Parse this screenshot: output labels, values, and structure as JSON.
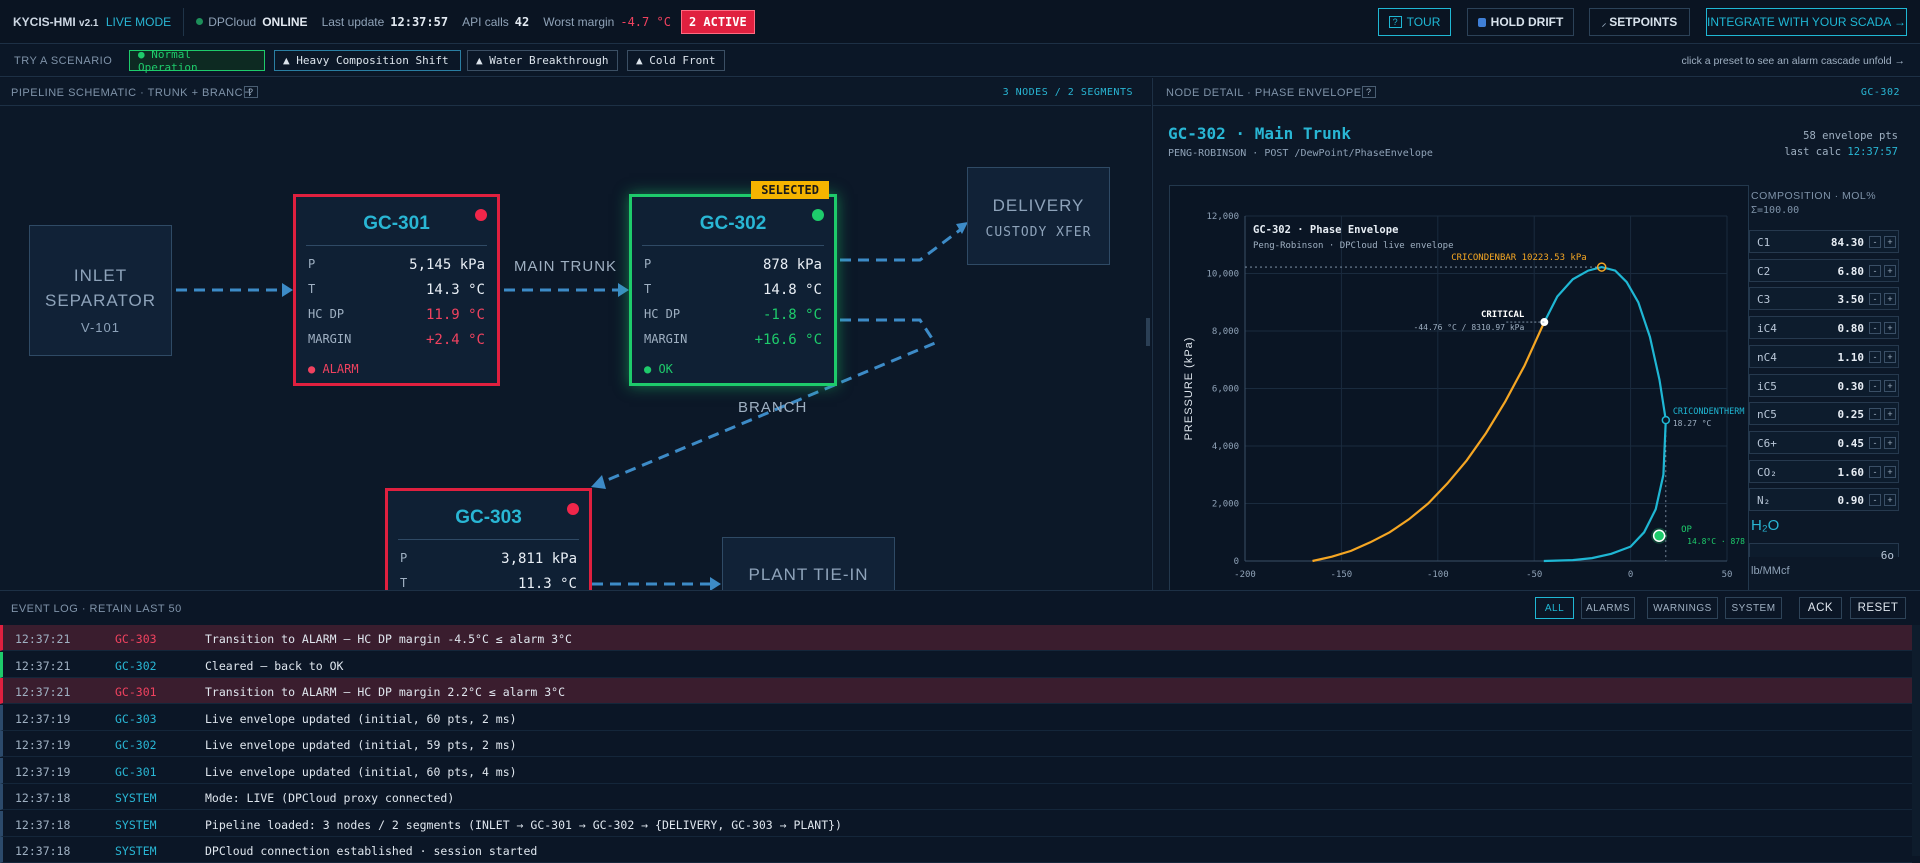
{
  "topbar": {
    "brand": "KYCIS-HMI",
    "version": "v2.1",
    "mode": "LIVE MODE",
    "cloud_label": "DPCloud",
    "cloud_status": "ONLINE",
    "last_update_label": "Last update",
    "last_update": "12:37:57",
    "api_label": "API calls",
    "api_calls": "42",
    "worst_label": "Worst margin",
    "worst_margin": "-4.7 °C",
    "active_badge": "2 ACTIVE",
    "tour": "TOUR",
    "hold_drift": "HOLD DRIFT",
    "setpoints": "SETPOINTS",
    "integrate": "INTEGRATE WITH YOUR SCADA →"
  },
  "scenarios": {
    "label": "TRY A SCENARIO",
    "items": [
      "● Normal Operation",
      "▲ Heavy Composition Shift",
      "▲ Water Breakthrough",
      "▲ Cold Front"
    ],
    "hint": "click a preset to see an alarm cascade unfold →"
  },
  "schematic": {
    "title": "PIPELINE SCHEMATIC · TRUNK + BRANCH",
    "help": "?",
    "stats": "3 NODES / 2 SEGMENTS",
    "inlet": {
      "line1": "INLET",
      "line2": "SEPARATOR",
      "line3": "V-101"
    },
    "delivery": {
      "line1": "DELIVERY",
      "line2": "CUSTODY XFER"
    },
    "plant": {
      "line1": "PLANT TIE-IN"
    },
    "main_trunk": "MAIN TRUNK",
    "branch": "BRANCH",
    "selected": "SELECTED",
    "gc301": {
      "name": "GC-301",
      "p": "5,145 kPa",
      "t": "14.3 °C",
      "hcdp": "11.9 °C",
      "margin": "+2.4 °C",
      "status": "● ALARM"
    },
    "gc302": {
      "name": "GC-302",
      "p": "878 kPa",
      "t": "14.8 °C",
      "hcdp": "-1.8 °C",
      "margin": "+16.6 °C",
      "status": "● OK"
    },
    "gc303": {
      "name": "GC-303",
      "p": "3,811 kPa",
      "t": "11.3 °C"
    },
    "labels": {
      "p": "P",
      "t": "T",
      "hcdp": "HC DP",
      "margin": "MARGIN"
    }
  },
  "detail": {
    "title": "NODE DETAIL · PHASE ENVELOPE",
    "help": "?",
    "node_id": "GC-302",
    "heading": "GC-302 · Main Trunk",
    "sub": "PENG-ROBINSON · POST /DewPoint/PhaseEnvelope",
    "envelope_pts": "58 envelope pts",
    "last_calc_label": "last calc",
    "last_calc": "12:37:57"
  },
  "composition": {
    "title": "COMPOSITION · MOL%",
    "sum": "Σ=100.00",
    "items": [
      {
        "n": "C1",
        "v": "84.30"
      },
      {
        "n": "C2",
        "v": "6.80"
      },
      {
        "n": "C3",
        "v": "3.50"
      },
      {
        "n": "iC4",
        "v": "0.80"
      },
      {
        "n": "nC4",
        "v": "1.10"
      },
      {
        "n": "iC5",
        "v": "0.30"
      },
      {
        "n": "nC5",
        "v": "0.25"
      },
      {
        "n": "C6+",
        "v": "0.45"
      },
      {
        "n": "CO₂",
        "v": "1.60"
      },
      {
        "n": "N₂",
        "v": "0.90"
      }
    ],
    "minus": "-",
    "plus": "+",
    "h2o": "H₂O",
    "h2o_val": "6o",
    "h2o_unit": "lb/MMcf"
  },
  "chart_data": {
    "type": "line",
    "title": "GC-302 · Phase Envelope",
    "subtitle": "Peng-Robinson · DPCloud live envelope",
    "ylabel": "PRESSURE (kPa)",
    "xlim": [
      -200,
      50
    ],
    "ylim": [
      0,
      12000
    ],
    "xticks": [
      -200,
      -150,
      -100,
      -50,
      0,
      50
    ],
    "yticks": [
      0,
      2000,
      4000,
      6000,
      8000,
      10000,
      12000
    ],
    "series": [
      {
        "name": "bubble",
        "color": "#f5a623",
        "x": [
          -165,
          -155,
          -145,
          -135,
          -125,
          -115,
          -105,
          -95,
          -85,
          -75,
          -65,
          -55,
          -44.76
        ],
        "y": [
          0,
          150,
          350,
          650,
          1000,
          1450,
          2000,
          2700,
          3500,
          4450,
          5550,
          6800,
          8310.97
        ]
      },
      {
        "name": "dew",
        "color": "#1fb7d4",
        "x": [
          -44.76,
          -38,
          -30,
          -22,
          -15,
          -8,
          -2,
          4,
          10,
          15,
          18.27,
          17,
          13,
          7,
          0,
          -10,
          -20,
          -30,
          -45
        ],
        "y": [
          8310.97,
          9200,
          9800,
          10100,
          10223.53,
          10100,
          9700,
          9000,
          7800,
          6300,
          4900,
          3000,
          1800,
          1000,
          500,
          250,
          100,
          30,
          0
        ]
      }
    ],
    "points": {
      "cricondenbar": {
        "x": -15,
        "y": 10223.53,
        "label": "CRICONDENBAR 10223.53 kPa"
      },
      "critical": {
        "x": -44.76,
        "y": 8310.97,
        "label": "CRITICAL",
        "sub": "-44.76 °C / 8310.97 kPa"
      },
      "cricondentherm": {
        "x": 18.27,
        "y": 4900,
        "label": "CRICONDENTHERM",
        "sub": "18.27 °C"
      },
      "op": {
        "x": 14.8,
        "y": 878,
        "label": "OP",
        "sub": "14.8°C · 878"
      }
    }
  },
  "log": {
    "title": "EVENT LOG · RETAIN LAST 50",
    "filters": [
      "ALL",
      "ALARMS",
      "WARNINGS",
      "SYSTEM"
    ],
    "ack": "ACK",
    "reset": "RESET",
    "rows": [
      {
        "t": "12:37:21",
        "src": "GC-303",
        "msg": "Transition to ALARM — HC DP margin -4.5°C ≤ alarm 3°C",
        "kind": "alarm"
      },
      {
        "t": "12:37:21",
        "src": "GC-302",
        "msg": "Cleared — back to OK",
        "kind": "ok"
      },
      {
        "t": "12:37:21",
        "src": "GC-301",
        "msg": "Transition to ALARM — HC DP margin 2.2°C ≤ alarm 3°C",
        "kind": "alarm"
      },
      {
        "t": "12:37:19",
        "src": "GC-303",
        "msg": "Live envelope updated (initial, 60 pts, 2 ms)",
        "kind": "info"
      },
      {
        "t": "12:37:19",
        "src": "GC-302",
        "msg": "Live envelope updated (initial, 59 pts, 2 ms)",
        "kind": "info"
      },
      {
        "t": "12:37:19",
        "src": "GC-301",
        "msg": "Live envelope updated (initial, 60 pts, 4 ms)",
        "kind": "info"
      },
      {
        "t": "12:37:18",
        "src": "SYSTEM",
        "msg": "Mode: LIVE (DPCloud proxy connected)",
        "kind": "info"
      },
      {
        "t": "12:37:18",
        "src": "SYSTEM",
        "msg": "Pipeline loaded: 3 nodes / 2 segments (INLET → GC-301 → GC-302 → {DELIVERY, GC-303 → PLANT})",
        "kind": "info"
      },
      {
        "t": "12:37:18",
        "src": "SYSTEM",
        "msg": "DPCloud connection established · session started",
        "kind": "info"
      }
    ]
  }
}
